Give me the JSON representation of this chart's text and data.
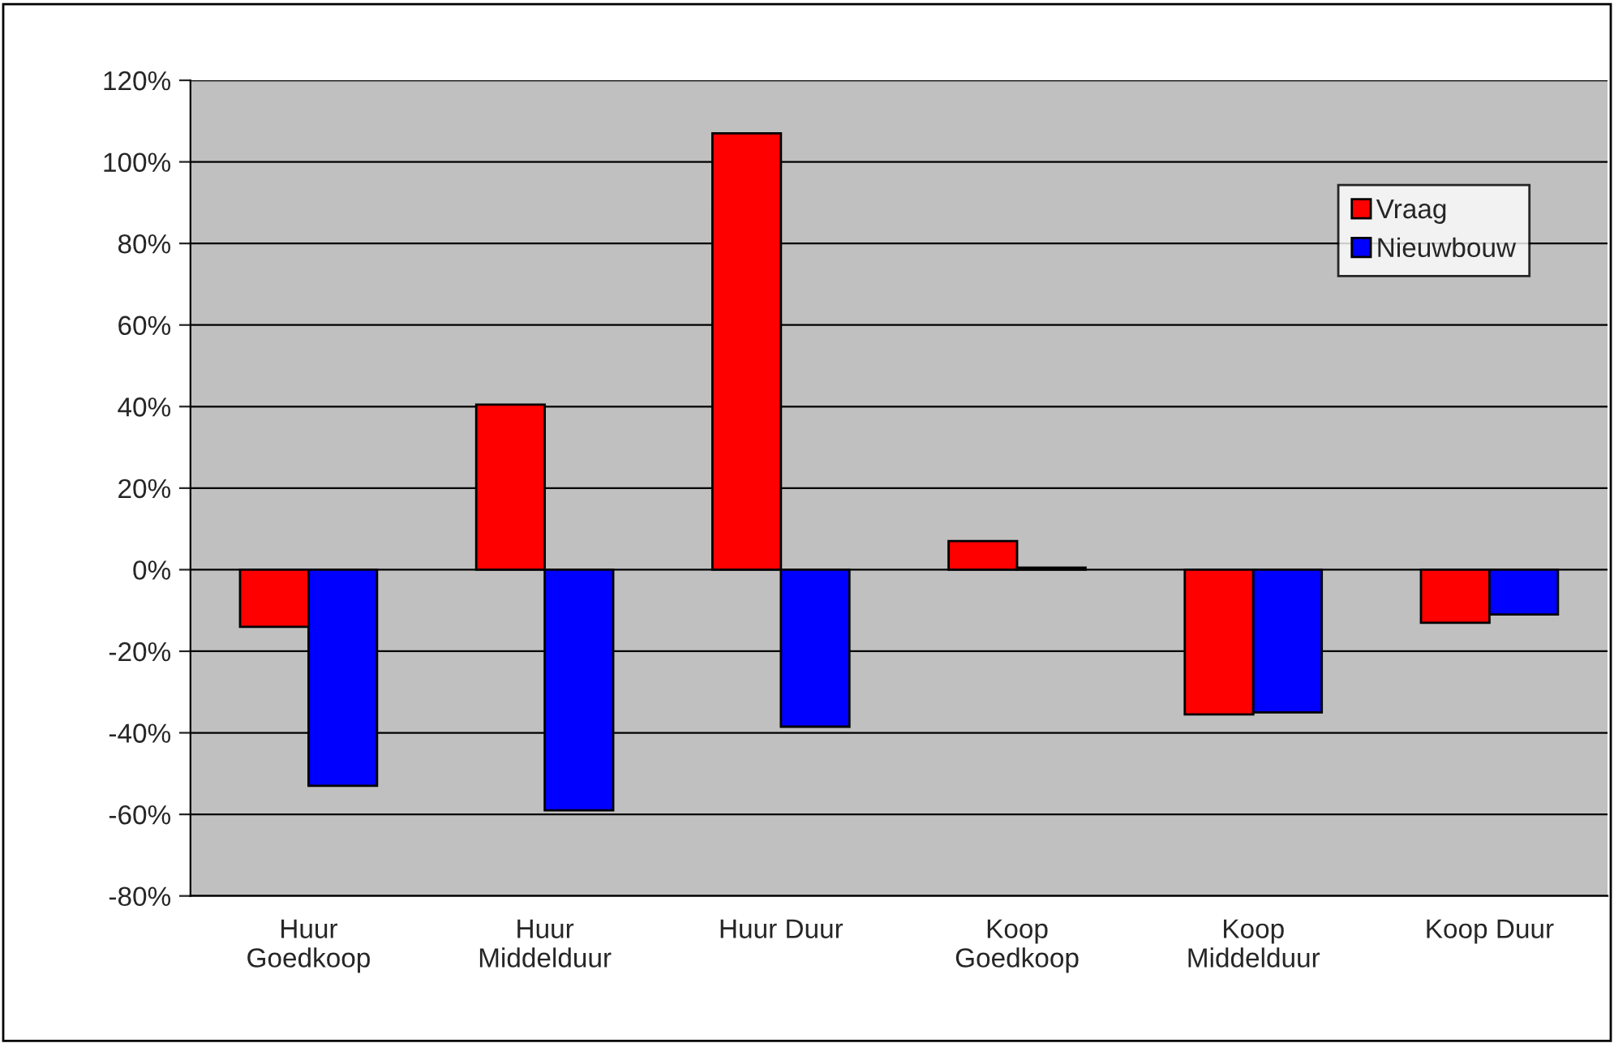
{
  "chart_data": {
    "type": "bar",
    "categories": [
      "Huur\nGoedkoop",
      "Huur\nMiddelduur",
      "Huur Duur",
      "Koop\nGoedkoop",
      "Koop\nMiddelduur",
      "Koop Duur"
    ],
    "series": [
      {
        "name": "Vraag",
        "color": "#ff0000",
        "values": [
          -14,
          40.5,
          107,
          7,
          -35.5,
          -13
        ]
      },
      {
        "name": "Nieuwbouw",
        "color": "#0000ff",
        "values": [
          -53,
          -59,
          -38.5,
          0.5,
          -35,
          -11
        ]
      }
    ],
    "ylim": [
      -80,
      120
    ],
    "yticks": [
      {
        "value": -80,
        "label": "-80%"
      },
      {
        "value": -60,
        "label": "-60%"
      },
      {
        "value": -40,
        "label": "-40%"
      },
      {
        "value": -20,
        "label": "-20%"
      },
      {
        "value": 0,
        "label": "0%"
      },
      {
        "value": 20,
        "label": "20%"
      },
      {
        "value": 40,
        "label": "40%"
      },
      {
        "value": 60,
        "label": "60%"
      },
      {
        "value": 80,
        "label": "80%"
      },
      {
        "value": 100,
        "label": "100%"
      },
      {
        "value": 120,
        "label": "120%"
      }
    ],
    "grid": "y",
    "legend": "top right"
  }
}
